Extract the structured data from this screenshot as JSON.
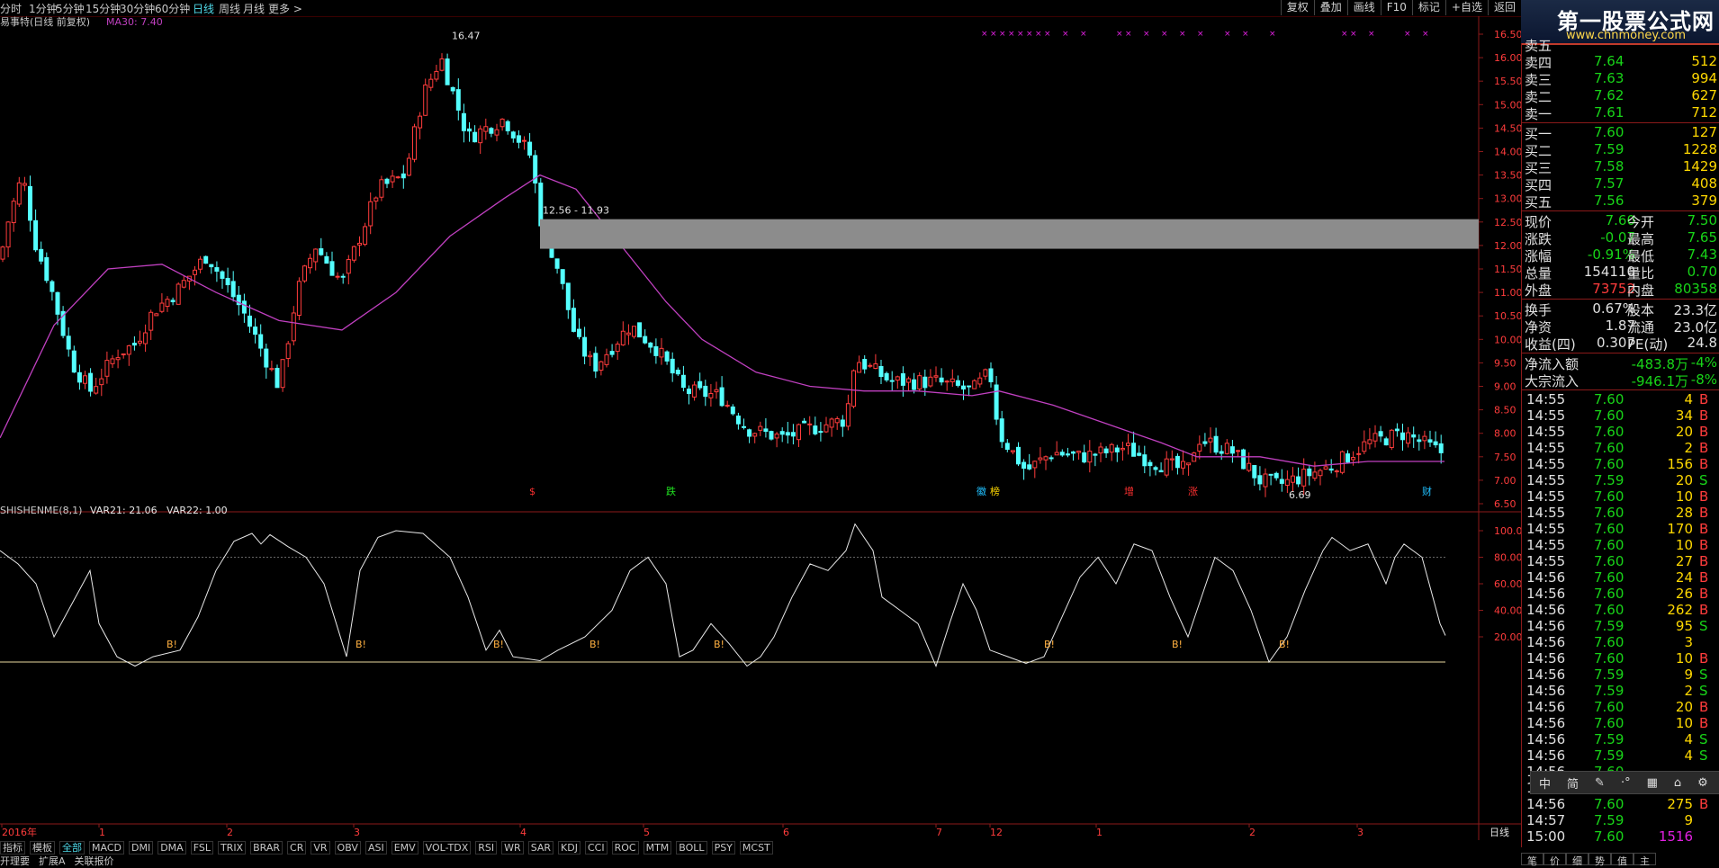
{
  "top_menu": {
    "periods": [
      "分时",
      "1分钟",
      "5分钟",
      "15分钟",
      "30分钟",
      "60分钟",
      "日线",
      "周线",
      "月线",
      "更多 >"
    ],
    "active_period": "日线",
    "right_buttons": [
      "复权",
      "叠加",
      "画线",
      "F10",
      "标记",
      "+自选",
      "返回"
    ]
  },
  "watermark": {
    "line1": "第一股票公式网",
    "line2": "www.chnmoney.com"
  },
  "price_chart": {
    "stock_title": "易事特(日线 前复权)",
    "ma_label": "MA30: 7.40",
    "high_label": "16.47",
    "low_label": "6.69",
    "box_label": "12.56 - 11.93",
    "y_ticks": [
      "16.50",
      "16.00",
      "15.50",
      "15.00",
      "14.50",
      "14.00",
      "13.50",
      "13.00",
      "12.50",
      "12.00",
      "11.50",
      "11.00",
      "10.50",
      "10.00",
      "9.50",
      "9.00",
      "8.50",
      "8.00",
      "7.50",
      "7.00",
      "6.50"
    ],
    "event_markers": [
      {
        "text": "$",
        "color": "#ff3030"
      },
      {
        "text": "跌",
        "color": "#20e020"
      },
      {
        "text": "徽",
        "color": "#20c0ff"
      },
      {
        "text": "榜",
        "color": "#ffd800"
      },
      {
        "text": "增",
        "color": "#ff3030"
      },
      {
        "text": "涨",
        "color": "#ff3030"
      },
      {
        "text": "财",
        "color": "#20c0ff"
      }
    ]
  },
  "indicator": {
    "title": "SHISHENME(8,1)",
    "var21": "VAR21: 21.06",
    "var22": "VAR22: 1.00",
    "y_ticks": [
      "100.00",
      "80.00",
      "60.00",
      "40.00",
      "20.00"
    ],
    "signal": "B!"
  },
  "x_axis": {
    "labels": [
      "2016年",
      "1",
      "2",
      "3",
      "4",
      "5",
      "6",
      "7",
      "12",
      "1",
      "2",
      "3"
    ],
    "corner": "日线"
  },
  "bottom_tabs": [
    "指标",
    "模板",
    "全部",
    "MACD",
    "DMI",
    "DMA",
    "FSL",
    "TRIX",
    "BRAR",
    "CR",
    "VR",
    "OBV",
    "ASI",
    "EMV",
    "VOL-TDX",
    "RSI",
    "WR",
    "SAR",
    "KDJ",
    "CCI",
    "ROC",
    "MTM",
    "BOLL",
    "PSY",
    "MCST"
  ],
  "bottom_row2": [
    "开理要",
    "扩展A",
    "关联报价"
  ],
  "order_book": {
    "sell": [
      {
        "label": "卖五",
        "price": "",
        "vol": ""
      },
      {
        "label": "卖四",
        "price": "7.64",
        "vol": "512"
      },
      {
        "label": "卖三",
        "price": "7.63",
        "vol": "994"
      },
      {
        "label": "卖二",
        "price": "7.62",
        "vol": "627"
      },
      {
        "label": "卖一",
        "price": "7.61",
        "vol": "712"
      }
    ],
    "buy": [
      {
        "label": "买一",
        "price": "7.60",
        "vol": "127"
      },
      {
        "label": "买二",
        "price": "7.59",
        "vol": "1228"
      },
      {
        "label": "买三",
        "price": "7.58",
        "vol": "1429"
      },
      {
        "label": "买四",
        "price": "7.57",
        "vol": "408"
      },
      {
        "label": "买五",
        "price": "7.56",
        "vol": "379"
      }
    ]
  },
  "quote": [
    {
      "l1": "现价",
      "v1": "7.60",
      "c1": "g",
      "l2": "今开",
      "v2": "7.50",
      "c2": "g"
    },
    {
      "l1": "涨跌",
      "v1": "-0.07",
      "c1": "g",
      "l2": "最高",
      "v2": "7.65",
      "c2": "g"
    },
    {
      "l1": "涨幅",
      "v1": "-0.91%",
      "c1": "g",
      "l2": "最低",
      "v2": "7.43",
      "c2": "g"
    },
    {
      "l1": "总量",
      "v1": "154110",
      "c1": "w",
      "l2": "量比",
      "v2": "0.70",
      "c2": "g"
    },
    {
      "l1": "外盘",
      "v1": "73752",
      "c1": "r",
      "l2": "内盘",
      "v2": "80358",
      "c2": "g"
    }
  ],
  "stats": [
    {
      "l1": "换手",
      "v1": "0.67%",
      "l2": "股本",
      "v2": "23.3亿"
    },
    {
      "l1": "净资",
      "v1": "1.87",
      "l2": "流通",
      "v2": "23.0亿"
    },
    {
      "l1": "收益(四)",
      "v1": "0.307",
      "l2": "PE(动)",
      "v2": "24.8"
    }
  ],
  "flow": [
    {
      "label": "净流入额",
      "val": "-483.8万",
      "pct": "-4%"
    },
    {
      "label": "大宗流入",
      "val": "-946.1万",
      "pct": "-8%"
    }
  ],
  "ticks": [
    {
      "t": "14:55",
      "p": "7.60",
      "v": "4",
      "d": "B"
    },
    {
      "t": "14:55",
      "p": "7.60",
      "v": "34",
      "d": "B"
    },
    {
      "t": "14:55",
      "p": "7.60",
      "v": "20",
      "d": "B"
    },
    {
      "t": "14:55",
      "p": "7.60",
      "v": "2",
      "d": "B"
    },
    {
      "t": "14:55",
      "p": "7.60",
      "v": "156",
      "d": "B"
    },
    {
      "t": "14:55",
      "p": "7.59",
      "v": "20",
      "d": "S"
    },
    {
      "t": "14:55",
      "p": "7.60",
      "v": "10",
      "d": "B"
    },
    {
      "t": "14:55",
      "p": "7.60",
      "v": "28",
      "d": "B"
    },
    {
      "t": "14:55",
      "p": "7.60",
      "v": "170",
      "d": "B"
    },
    {
      "t": "14:55",
      "p": "7.60",
      "v": "10",
      "d": "B"
    },
    {
      "t": "14:55",
      "p": "7.60",
      "v": "27",
      "d": "B"
    },
    {
      "t": "14:56",
      "p": "7.60",
      "v": "24",
      "d": "B"
    },
    {
      "t": "14:56",
      "p": "7.60",
      "v": "26",
      "d": "B"
    },
    {
      "t": "14:56",
      "p": "7.60",
      "v": "262",
      "d": "B"
    },
    {
      "t": "14:56",
      "p": "7.59",
      "v": "95",
      "d": "S"
    },
    {
      "t": "14:56",
      "p": "7.60",
      "v": "3",
      "d": ""
    },
    {
      "t": "14:56",
      "p": "7.60",
      "v": "10",
      "d": "B"
    },
    {
      "t": "14:56",
      "p": "7.59",
      "v": "9",
      "d": "S"
    },
    {
      "t": "14:56",
      "p": "7.59",
      "v": "2",
      "d": "S"
    },
    {
      "t": "14:56",
      "p": "7.60",
      "v": "20",
      "d": "B"
    },
    {
      "t": "14:56",
      "p": "7.60",
      "v": "10",
      "d": "B"
    },
    {
      "t": "14:56",
      "p": "7.59",
      "v": "4",
      "d": "S"
    },
    {
      "t": "14:56",
      "p": "7.59",
      "v": "4",
      "d": "S"
    },
    {
      "t": "14:56",
      "p": "7.60",
      "v": "",
      "d": ""
    },
    {
      "t": "14:56",
      "p": "7.60",
      "v": "",
      "d": ""
    },
    {
      "t": "14:56",
      "p": "7.60",
      "v": "275",
      "d": "B"
    },
    {
      "t": "14:57",
      "p": "7.59",
      "v": "9",
      "d": ""
    },
    {
      "t": "15:00",
      "p": "7.60",
      "v": "1516",
      "d": ""
    }
  ],
  "float_toolbar": [
    "中",
    "简"
  ],
  "bottom_right_tabs": [
    "笔",
    "价",
    "细",
    "势",
    "值",
    "主"
  ],
  "colors": {
    "up": "#ff3c3c",
    "down": "#54ffff",
    "ma": "#c040c0",
    "grid": "#4a0000"
  }
}
